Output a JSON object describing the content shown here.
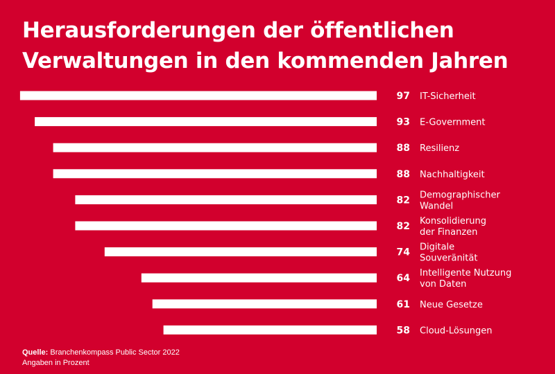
{
  "title_line1": "Herausforderungen der öffentlichen",
  "title_line2": "Verwaltungen in den kommenden Jahren",
  "source_label": "Quelle:",
  "source_text": "Branchenkompass Public Sector 2022",
  "unit_note": "Angaben in Prozent",
  "colors": {
    "background": "#d2002d",
    "bar": "#ffffff",
    "text": "#ffffff"
  },
  "chart_data": {
    "type": "bar",
    "orientation": "horizontal",
    "bar_direction": "right-aligned, extending left",
    "categories": [
      [
        "IT-Sicherheit"
      ],
      [
        "E-Government"
      ],
      [
        "Resilienz"
      ],
      [
        "Nachhaltigkeit"
      ],
      [
        "Demographischer",
        "Wandel"
      ],
      [
        "Konsolidierung",
        "der Finanzen"
      ],
      [
        "Digitale",
        "Souveränität"
      ],
      [
        "Intelligente Nutzung",
        "von Daten"
      ],
      [
        "Neue Gesetze"
      ],
      [
        "Cloud-Lösungen"
      ]
    ],
    "values": [
      97,
      93,
      88,
      88,
      82,
      82,
      74,
      64,
      61,
      58
    ],
    "xlim": [
      0,
      100
    ],
    "grid": false,
    "legend": "none"
  }
}
